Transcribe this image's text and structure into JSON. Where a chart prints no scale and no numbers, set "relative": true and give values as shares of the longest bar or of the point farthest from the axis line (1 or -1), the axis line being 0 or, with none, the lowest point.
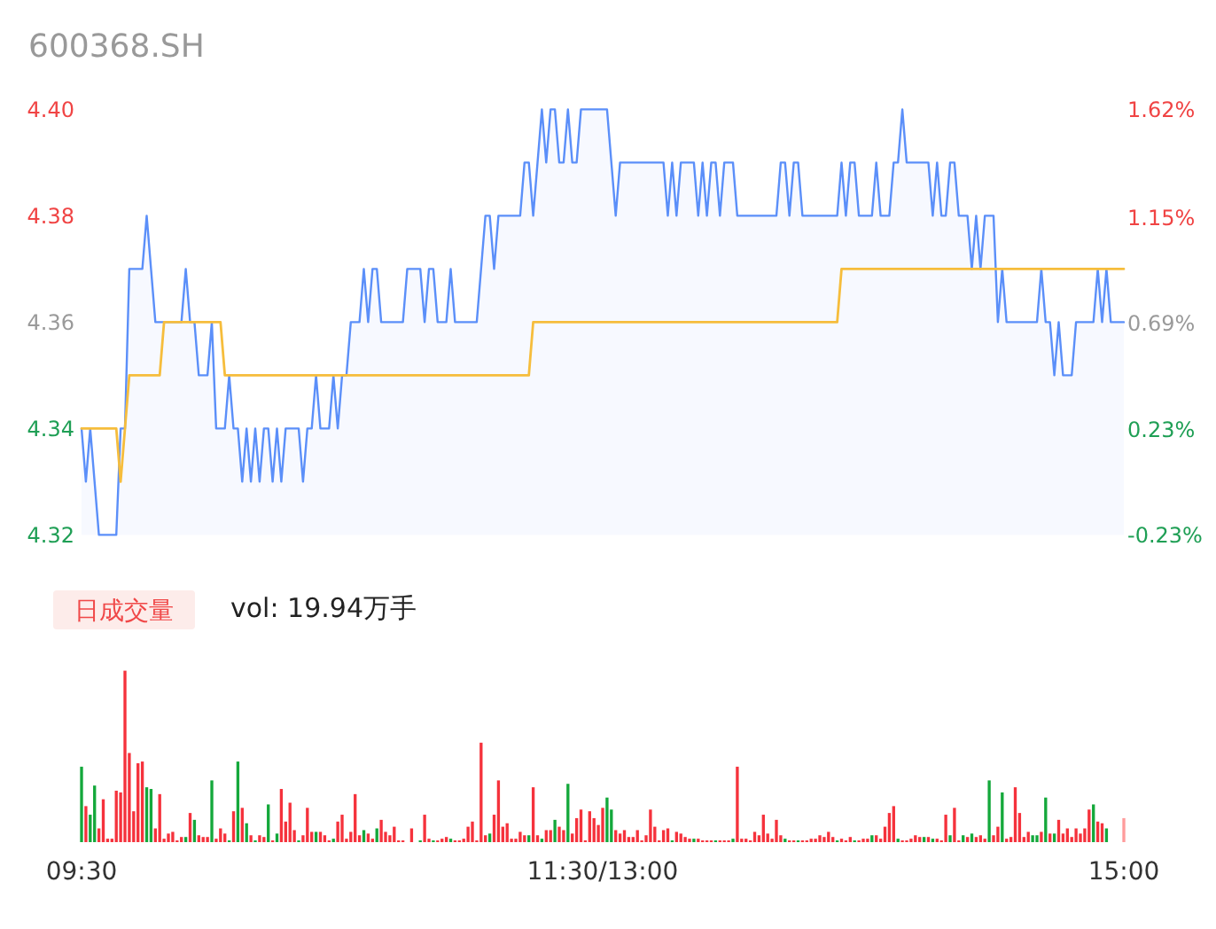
{
  "chart_data": [
    {
      "type": "area",
      "title": "600368.SH",
      "ylim": [
        4.32,
        4.4
      ],
      "yticks": [
        4.32,
        4.34,
        4.36,
        4.38,
        {
          "value": 4.4,
          "label": "4.40"
        }
      ],
      "y2lim": [
        -0.23,
        1.62
      ],
      "y2ticks": [
        {
          "value": -0.23,
          "label": "-0.23%"
        },
        {
          "value": 0.23,
          "label": "0.23%"
        },
        {
          "value": 0.69,
          "label": "0.69%"
        },
        {
          "value": 1.15,
          "label": "1.15%"
        },
        {
          "value": 1.62,
          "label": "1.62%"
        }
      ],
      "categories": [
        null,
        null,
        null,
        null,
        null,
        null,
        null,
        null,
        null,
        null,
        null,
        null,
        null,
        null,
        null,
        null,
        null,
        null,
        null,
        null,
        null,
        null,
        null,
        null,
        null,
        null,
        null,
        null,
        null,
        null,
        null,
        null,
        null,
        null,
        null,
        null,
        null,
        null,
        null,
        null,
        null,
        null,
        null,
        null,
        null,
        null,
        null,
        null,
        null,
        null,
        null,
        null,
        null,
        null,
        null,
        null,
        null,
        null,
        null,
        null,
        null,
        null,
        null,
        null,
        null,
        null,
        null,
        null,
        null,
        null,
        null,
        null,
        null,
        null,
        null,
        null,
        null,
        null,
        null,
        null,
        null,
        null,
        null,
        null,
        null,
        null,
        null,
        null,
        null,
        null,
        null,
        null,
        null,
        null,
        null,
        null,
        null,
        null,
        null,
        null,
        null,
        null,
        null,
        null,
        null,
        null,
        null,
        null,
        null,
        null,
        null,
        null,
        null,
        null,
        null,
        null,
        null,
        null,
        null,
        null,
        null,
        null,
        null,
        null,
        null,
        null,
        null,
        null,
        null,
        null,
        null,
        null,
        null,
        null,
        null,
        null,
        null,
        null,
        null,
        null,
        null,
        null,
        null,
        null,
        null,
        null,
        null,
        null,
        null,
        null,
        null,
        null,
        null,
        null,
        null,
        null,
        null,
        null,
        null,
        null,
        null,
        null,
        null,
        null,
        null,
        null,
        null,
        null,
        null,
        null,
        null,
        null,
        null,
        null,
        null,
        null,
        null,
        null,
        null,
        null,
        null,
        null,
        null,
        null,
        null,
        null,
        null,
        null,
        null,
        null,
        null,
        null,
        null,
        null,
        null,
        null,
        null,
        null,
        null,
        null,
        null,
        null,
        null,
        null,
        null,
        null,
        null,
        null,
        null,
        null,
        null,
        null,
        null,
        null,
        null,
        null,
        null,
        null,
        null,
        null,
        null,
        null,
        null,
        null,
        null,
        null,
        null,
        null,
        null,
        null,
        null,
        null,
        null,
        null,
        null,
        null,
        null,
        null,
        null,
        null,
        null
      ],
      "series": [
        {
          "type": "area",
          "color": "#5b8ff9",
          "values": [
            4.34,
            4.33,
            4.34,
            4.33,
            4.32,
            4.32,
            4.32,
            4.32,
            4.32,
            4.34,
            4.34,
            4.37,
            4.37,
            4.37,
            4.37,
            4.38,
            4.37,
            4.36,
            4.36,
            4.36,
            4.36,
            4.36,
            4.36,
            4.36,
            4.37,
            4.36,
            4.36,
            4.35,
            4.35,
            4.35,
            4.36,
            4.34,
            4.34,
            4.34,
            4.35,
            4.34,
            4.34,
            4.33,
            4.34,
            4.33,
            4.34,
            4.33,
            4.34,
            4.34,
            4.33,
            4.34,
            4.33,
            4.34,
            4.34,
            4.34,
            4.34,
            4.33,
            4.34,
            4.34,
            4.35,
            4.34,
            4.34,
            4.34,
            4.35,
            4.34,
            4.35,
            4.35,
            4.36,
            4.36,
            4.36,
            4.37,
            4.36,
            4.37,
            4.37,
            4.36,
            4.36,
            4.36,
            4.36,
            4.36,
            4.36,
            4.37,
            4.37,
            4.37,
            4.37,
            4.36,
            4.37,
            4.37,
            4.36,
            4.36,
            4.36,
            4.37,
            4.36,
            4.36,
            4.36,
            4.36,
            4.36,
            4.36,
            4.37,
            4.38,
            4.38,
            4.37,
            4.38,
            4.38,
            4.38,
            4.38,
            4.38,
            4.38,
            4.39,
            4.39,
            4.38,
            4.39,
            4.4,
            4.39,
            4.4,
            4.4,
            4.39,
            4.39,
            4.4,
            4.39,
            4.39,
            4.4,
            4.4,
            4.4,
            4.4,
            4.4,
            4.4,
            4.4,
            4.39,
            4.38,
            4.39,
            4.39,
            4.39,
            4.39,
            4.39,
            4.39,
            4.39,
            4.39,
            4.39,
            4.39,
            4.39,
            4.38,
            4.39,
            4.38,
            4.39,
            4.39,
            4.39,
            4.39,
            4.38,
            4.39,
            4.38,
            4.39,
            4.39,
            4.38,
            4.39,
            4.39,
            4.39,
            4.38,
            4.38,
            4.38,
            4.38,
            4.38,
            4.38,
            4.38,
            4.38,
            4.38,
            4.38,
            4.39,
            4.39,
            4.38,
            4.39,
            4.39,
            4.38,
            4.38,
            4.38,
            4.38,
            4.38,
            4.38,
            4.38,
            4.38,
            4.38,
            4.39,
            4.38,
            4.39,
            4.39,
            4.38,
            4.38,
            4.38,
            4.38,
            4.39,
            4.38,
            4.38,
            4.38,
            4.39,
            4.39,
            4.4,
            4.39,
            4.39,
            4.39,
            4.39,
            4.39,
            4.39,
            4.38,
            4.39,
            4.38,
            4.38,
            4.39,
            4.39,
            4.38,
            4.38,
            4.38,
            4.37,
            4.38,
            4.37,
            4.38,
            4.38,
            4.38,
            4.36,
            4.37,
            4.36,
            4.36,
            4.36,
            4.36,
            4.36,
            4.36,
            4.36,
            4.36,
            4.37,
            4.36,
            4.36,
            4.35,
            4.36,
            4.35,
            4.35,
            4.35,
            4.36,
            4.36,
            4.36,
            4.36,
            4.36,
            4.37,
            4.36,
            4.37,
            4.36,
            4.36,
            4.36,
            4.36
          ]
        },
        {
          "type": "line",
          "color": "#f6bd3c",
          "values": [
            4.34,
            4.34,
            4.34,
            4.34,
            4.34,
            4.34,
            4.34,
            4.34,
            4.34,
            4.33,
            4.34,
            4.35,
            4.35,
            4.35,
            4.35,
            4.35,
            4.35,
            4.35,
            4.35,
            4.36,
            4.36,
            4.36,
            4.36,
            4.36,
            4.36,
            4.36,
            4.36,
            4.36,
            4.36,
            4.36,
            4.36,
            4.36,
            4.36,
            4.35,
            4.35,
            4.35,
            4.35,
            4.35,
            4.35,
            4.35,
            4.35,
            4.35,
            4.35,
            4.35,
            4.35,
            4.35,
            4.35,
            4.35,
            4.35,
            4.35,
            4.35,
            4.35,
            4.35,
            4.35,
            4.35,
            4.35,
            4.35,
            4.35,
            4.35,
            4.35,
            4.35,
            4.35,
            4.35,
            4.35,
            4.35,
            4.35,
            4.35,
            4.35,
            4.35,
            4.35,
            4.35,
            4.35,
            4.35,
            4.35,
            4.35,
            4.35,
            4.35,
            4.35,
            4.35,
            4.35,
            4.35,
            4.35,
            4.35,
            4.35,
            4.35,
            4.35,
            4.35,
            4.35,
            4.35,
            4.35,
            4.35,
            4.35,
            4.35,
            4.35,
            4.35,
            4.35,
            4.35,
            4.35,
            4.35,
            4.35,
            4.35,
            4.35,
            4.35,
            4.35,
            4.36,
            4.36,
            4.36,
            4.36,
            4.36,
            4.36,
            4.36,
            4.36,
            4.36,
            4.36,
            4.36,
            4.36,
            4.36,
            4.36,
            4.36,
            4.36,
            4.36,
            4.36,
            4.36,
            4.36,
            4.36,
            4.36,
            4.36,
            4.36,
            4.36,
            4.36,
            4.36,
            4.36,
            4.36,
            4.36,
            4.36,
            4.36,
            4.36,
            4.36,
            4.36,
            4.36,
            4.36,
            4.36,
            4.36,
            4.36,
            4.36,
            4.36,
            4.36,
            4.36,
            4.36,
            4.36,
            4.36,
            4.36,
            4.36,
            4.36,
            4.36,
            4.36,
            4.36,
            4.36,
            4.36,
            4.36,
            4.36,
            4.36,
            4.36,
            4.36,
            4.36,
            4.36,
            4.36,
            4.36,
            4.36,
            4.36,
            4.36,
            4.36,
            4.36,
            4.36,
            4.36,
            4.37,
            4.37,
            4.37,
            4.37,
            4.37,
            4.37,
            4.37,
            4.37,
            4.37,
            4.37,
            4.37,
            4.37,
            4.37,
            4.37,
            4.37,
            4.37,
            4.37,
            4.37,
            4.37,
            4.37,
            4.37,
            4.37,
            4.37,
            4.37,
            4.37,
            4.37,
            4.37,
            4.37,
            4.37,
            4.37,
            4.37,
            4.37,
            4.37,
            4.37,
            4.37,
            4.37,
            4.37,
            4.37,
            4.37,
            4.37,
            4.37,
            4.37,
            4.37,
            4.37,
            4.37,
            4.37,
            4.37,
            4.37,
            4.37,
            4.37,
            4.37,
            4.37,
            4.37,
            4.37,
            4.37,
            4.37,
            4.37,
            4.37,
            4.37,
            4.37,
            4.37,
            4.37,
            4.37,
            4.37,
            4.37,
            4.37
          ]
        }
      ]
    },
    {
      "type": "bar",
      "title": "日成交量",
      "subtitle": "vol: 19.94万手",
      "relative": true,
      "categories": [
        "09:30",
        null,
        null,
        null,
        null,
        null,
        null,
        null,
        null,
        null,
        null,
        null,
        null,
        null,
        null,
        null,
        null,
        null,
        null,
        null,
        null,
        null,
        null,
        null,
        null,
        null,
        null,
        null,
        null,
        null,
        null,
        null,
        null,
        null,
        null,
        null,
        null,
        null,
        null,
        null,
        null,
        null,
        null,
        null,
        null,
        null,
        null,
        null,
        null,
        null,
        null,
        null,
        null,
        null,
        null,
        null,
        null,
        null,
        null,
        null,
        null,
        null,
        null,
        null,
        null,
        null,
        null,
        null,
        null,
        null,
        null,
        null,
        null,
        null,
        null,
        null,
        null,
        null,
        null,
        null,
        null,
        null,
        null,
        null,
        null,
        null,
        null,
        null,
        null,
        null,
        null,
        null,
        null,
        null,
        null,
        null,
        null,
        null,
        null,
        null,
        null,
        null,
        null,
        null,
        null,
        null,
        null,
        null,
        null,
        null,
        null,
        null,
        null,
        null,
        null,
        null,
        null,
        null,
        null,
        null,
        "11:30/13:00",
        null,
        null,
        null,
        null,
        null,
        null,
        null,
        null,
        null,
        null,
        null,
        null,
        null,
        null,
        null,
        null,
        null,
        null,
        null,
        null,
        null,
        null,
        null,
        null,
        null,
        null,
        null,
        null,
        null,
        null,
        null,
        null,
        null,
        null,
        null,
        null,
        null,
        null,
        null,
        null,
        null,
        null,
        null,
        null,
        null,
        null,
        null,
        null,
        null,
        null,
        null,
        null,
        null,
        null,
        null,
        null,
        null,
        null,
        null,
        null,
        null,
        null,
        null,
        null,
        null,
        null,
        null,
        null,
        null,
        null,
        null,
        null,
        null,
        null,
        null,
        null,
        null,
        null,
        null,
        null,
        null,
        null,
        null,
        null,
        null,
        null,
        null,
        null,
        null,
        null,
        null,
        null,
        null,
        null,
        null,
        null,
        null,
        null,
        null,
        null,
        null,
        null,
        null,
        null,
        null,
        null,
        null,
        null,
        null,
        null,
        null,
        null,
        null,
        null,
        null,
        null,
        null,
        null,
        null,
        "15:00"
      ],
      "values": [
        0.44,
        0.21,
        0.16,
        0.33,
        0.08,
        0.25,
        0.02,
        0.02,
        0.3,
        0.29,
        1,
        0.52,
        0.18,
        0.46,
        0.47,
        0.32,
        0.31,
        0.08,
        0.28,
        0.02,
        0.05,
        0.06,
        0.01,
        0.03,
        0.03,
        0.17,
        0.13,
        0.04,
        0.03,
        0.03,
        0.36,
        0.02,
        0.08,
        0.05,
        0.01,
        0.18,
        0.47,
        0.2,
        0.11,
        0.04,
        0.01,
        0.04,
        0.03,
        0.22,
        0.01,
        0.05,
        0.31,
        0.12,
        0.23,
        0.07,
        0.01,
        0.04,
        0.2,
        0.06,
        0.06,
        0.06,
        0.04,
        0.01,
        0.02,
        0.12,
        0.16,
        0.02,
        0.06,
        0.28,
        0.04,
        0.07,
        0.05,
        0.02,
        0.08,
        0.13,
        0.06,
        0.04,
        0.09,
        0.01,
        0.01,
        0,
        0.08,
        0,
        0.01,
        0.16,
        0.02,
        0.01,
        0.01,
        0.02,
        0.03,
        0.02,
        0.01,
        0.01,
        0.02,
        0.09,
        0.12,
        0.01,
        0.58,
        0.04,
        0.05,
        0.16,
        0.36,
        0.09,
        0.11,
        0.02,
        0.02,
        0.06,
        0.04,
        0.04,
        0.32,
        0.04,
        0.02,
        0.07,
        0.07,
        0.13,
        0.09,
        0.07,
        0.34,
        0.05,
        0.14,
        0.19,
        0.01,
        0.18,
        0.14,
        0.1,
        0.2,
        0.26,
        0.19,
        0.07,
        0.05,
        0.07,
        0.03,
        0.03,
        0.07,
        0.01,
        0.04,
        0.19,
        0.09,
        0.01,
        0.07,
        0.08,
        0.01,
        0.06,
        0.05,
        0.03,
        0.02,
        0.02,
        0.02,
        0.01,
        0.01,
        0.01,
        0.01,
        0.01,
        0.01,
        0.01,
        0.02,
        0.44,
        0.02,
        0.02,
        0.01,
        0.06,
        0.04,
        0.16,
        0.05,
        0.02,
        0.13,
        0.04,
        0.02,
        0.01,
        0.01,
        0.01,
        0.01,
        0.01,
        0.02,
        0.02,
        0.04,
        0.03,
        0.06,
        0.03,
        0.01,
        0.02,
        0.01,
        0.03,
        0.01,
        0.01,
        0.02,
        0.02,
        0.04,
        0.04,
        0.02,
        0.09,
        0.17,
        0.21,
        0.02,
        0.01,
        0.01,
        0.02,
        0.04,
        0.03,
        0.03,
        0.03,
        0.02,
        0.02,
        0.01,
        0.16,
        0.04,
        0.2,
        0.01,
        0.04,
        0.03,
        0.05,
        0.03,
        0.04,
        0.02,
        0.36,
        0.04,
        0.09,
        0.29,
        0.02,
        0.03,
        0.32,
        0.17,
        0.03,
        0.06,
        0.04,
        0.04,
        0.06,
        0.26,
        0.05,
        0.05,
        0.13,
        0.05,
        0.08,
        0.03,
        0.08,
        0.05,
        0.08,
        0.19,
        0.22,
        0.12,
        0.11,
        0.08,
        0,
        0,
        0,
        0.14
      ],
      "colors": [
        "#14a83b",
        "#f5323c",
        "#14a83b",
        "#14a83b",
        "#f5323c",
        "#f5323c",
        "#f5323c",
        "#f5323c",
        "#f5323c",
        "#f5323c",
        "#f5323c",
        "#f5323c",
        "#f5323c",
        "#f5323c",
        "#f5323c",
        "#14a83b",
        "#14a83b",
        "#f5323c",
        "#f5323c",
        "#f5323c",
        "#f5323c",
        "#f5323c",
        "#f5323c",
        "#f5323c",
        "#14a83b",
        "#f5323c",
        "#14a83b",
        "#f5323c",
        "#f5323c",
        "#f5323c",
        "#14a83b",
        "#f5323c",
        "#f5323c",
        "#f5323c",
        "#14a83b",
        "#f5323c",
        "#14a83b",
        "#f5323c",
        "#14a83b",
        "#f5323c",
        "#14a83b",
        "#f5323c",
        "#f5323c",
        "#14a83b",
        "#f5323c",
        "#14a83b",
        "#f5323c",
        "#f5323c",
        "#f5323c",
        "#f5323c",
        "#14a83b",
        "#f5323c",
        "#f5323c",
        "#f5323c",
        "#14a83b",
        "#f5323c",
        "#f5323c",
        "#f5323c",
        "#14a83b",
        "#f5323c",
        "#f5323c",
        "#f5323c",
        "#f5323c",
        "#f5323c",
        "#f5323c",
        "#14a83b",
        "#f5323c",
        "#f5323c",
        "#14a83b",
        "#f5323c",
        "#f5323c",
        "#f5323c",
        "#f5323c",
        "#f5323c",
        "#f5323c",
        null,
        "#f5323c",
        null,
        "#14a83b",
        "#f5323c",
        "#f5323c",
        "#14a83b",
        "#f5323c",
        "#f5323c",
        "#f5323c",
        "#14a83b",
        "#f5323c",
        "#f5323c",
        "#f5323c",
        "#f5323c",
        "#f5323c",
        "#f5323c",
        "#f5323c",
        "#f5323c",
        "#14a83b",
        "#f5323c",
        "#f5323c",
        "#f5323c",
        "#f5323c",
        "#f5323c",
        "#f5323c",
        "#f5323c",
        "#f5323c",
        "#14a83b",
        "#f5323c",
        "#f5323c",
        "#14a83b",
        "#f5323c",
        "#f5323c",
        "#14a83b",
        "#f5323c",
        "#f5323c",
        "#14a83b",
        "#f5323c",
        "#f5323c",
        "#f5323c",
        "#f5323c",
        "#f5323c",
        "#f5323c",
        "#f5323c",
        "#f5323c",
        "#14a83b",
        "#14a83b",
        "#f5323c",
        "#f5323c",
        "#f5323c",
        "#f5323c",
        "#f5323c",
        "#f5323c",
        "#f5323c",
        "#f5323c",
        "#f5323c",
        "#f5323c",
        "#f5323c",
        "#f5323c",
        "#f5323c",
        "#14a83b",
        "#f5323c",
        "#f5323c",
        "#f5323c",
        "#f5323c",
        "#14a83b",
        "#f5323c",
        "#f5323c",
        "#f5323c",
        "#f5323c",
        "#14a83b",
        "#f5323c",
        "#f5323c",
        "#f5323c",
        "#14a83b",
        "#f5323c",
        "#f5323c",
        "#f5323c",
        "#f5323c",
        "#f5323c",
        "#f5323c",
        "#f5323c",
        "#f5323c",
        "#f5323c",
        "#f5323c",
        "#f5323c",
        "#14a83b",
        "#f5323c",
        "#f5323c",
        "#14a83b",
        "#f5323c",
        "#f5323c",
        "#f5323c",
        "#f5323c",
        "#f5323c",
        "#f5323c",
        "#f5323c",
        "#f5323c",
        "#14a83b",
        "#f5323c",
        "#f5323c",
        "#f5323c",
        "#14a83b",
        "#f5323c",
        "#f5323c",
        "#f5323c",
        "#14a83b",
        "#f5323c",
        "#f5323c",
        "#f5323c",
        "#f5323c",
        "#f5323c",
        "#14a83b",
        "#f5323c",
        "#f5323c",
        "#f5323c",
        "#f5323c",
        "#f5323c",
        "#14a83b",
        "#f5323c",
        "#14a83b",
        "#f5323c",
        "#f5323c",
        "#f5323c",
        "#14a83b",
        "#f5323c",
        "#f5323c",
        "#14a83b",
        "#f5323c",
        "#14a83b",
        "#f5323c",
        "#f5323c",
        "#f5323c",
        "#14a83b",
        "#f5323c",
        "#f5323c",
        "#14a83b",
        "#f5323c",
        "#f5323c",
        "#f5323c",
        "#f5323c",
        "#f5323c",
        "#f5323c",
        "#14a83b",
        "#14a83b",
        "#f5323c",
        "#14a83b",
        "#f5323c",
        "#14a83b",
        "#f5323c",
        "#f5323c",
        "#f5323c",
        "#f5323c",
        "#f5323c",
        "#f5323c",
        "#f5323c",
        "#f5323c",
        "#14a83b",
        "#f5323c",
        "#f5323c",
        "#14a83b",
        null,
        null,
        null,
        "#ff9c9c"
      ]
    }
  ]
}
